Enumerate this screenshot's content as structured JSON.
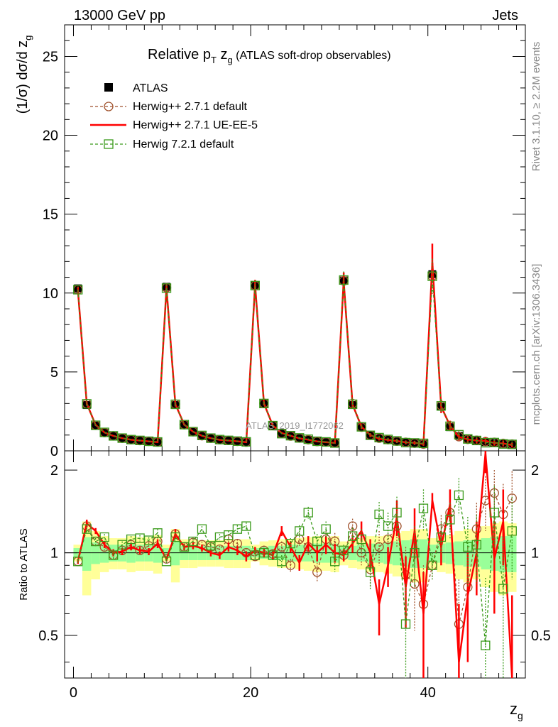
{
  "header": {
    "left": "13000 GeV pp",
    "right": "Jets"
  },
  "side_labels": {
    "rivet": "Rivet 3.1.10, ≥ 2.2M events",
    "mcplots": "mcplots.cern.ch [arXiv:1306.3436]"
  },
  "watermark": "ATLAS_2019_I1772062",
  "title": {
    "main": "Relative p",
    "sub_t": "T",
    "zg": " z",
    "sub_g": "g",
    "rest": " (ATLAS soft-drop observables)"
  },
  "ylabel_top": "(1/σ) dσ/d z",
  "ylabel_top_sub": "g",
  "ylabel_bottom": "Ratio to ATLAS",
  "xlabel": "z",
  "xlabel_sub": "g",
  "colors": {
    "atlas": "#000000",
    "herwig_def": "#a0522d",
    "herwig_ue": "#ff0000",
    "herwig7": "#3a9a1a",
    "band_yellow": "#ffff99",
    "band_green": "#99ff99"
  },
  "chart_data": {
    "type": "line",
    "x": [
      0.5,
      1.5,
      2.5,
      3.5,
      4.5,
      5.5,
      6.5,
      7.5,
      8.5,
      9.5,
      10.5,
      11.5,
      12.5,
      13.5,
      14.5,
      15.5,
      16.5,
      17.5,
      18.5,
      19.5,
      20.5,
      21.5,
      22.5,
      23.5,
      24.5,
      25.5,
      26.5,
      27.5,
      28.5,
      29.5,
      30.5,
      31.5,
      32.5,
      33.5,
      34.5,
      35.5,
      36.5,
      37.5,
      38.5,
      39.5,
      40.5,
      41.5,
      42.5,
      43.5,
      44.5,
      45.5,
      46.5,
      47.5,
      48.5,
      49.5
    ],
    "xlim": [
      -1,
      51
    ],
    "top_ylim": [
      0,
      27
    ],
    "top_yticks": [
      0,
      5,
      10,
      15,
      20,
      25
    ],
    "bottom_ylim": [
      0.35,
      2.35
    ],
    "bottom_yticks": [
      0.5,
      1,
      2
    ],
    "xticks": [
      0,
      20,
      40
    ],
    "legend": [
      "ATLAS",
      "Herwig++ 2.7.1 default",
      "Herwig++ 2.7.1 UE-EE-5",
      "Herwig 7.2.1 default"
    ],
    "legend_position": "top-left",
    "atlas": [
      10.3,
      2.9,
      1.6,
      1.15,
      0.95,
      0.8,
      0.7,
      0.65,
      0.6,
      0.55,
      10.4,
      2.9,
      1.65,
      1.2,
      0.95,
      0.8,
      0.7,
      0.65,
      0.6,
      0.55,
      10.5,
      3.0,
      1.6,
      1.1,
      0.95,
      0.8,
      0.7,
      0.6,
      0.55,
      0.5,
      10.8,
      2.9,
      1.5,
      1.0,
      0.8,
      0.7,
      0.6,
      0.55,
      0.5,
      0.45,
      11.2,
      2.8,
      1.5,
      0.95,
      0.75,
      0.65,
      0.55,
      0.5,
      0.45,
      0.4
    ],
    "series": [
      {
        "name": "Herwig++ 2.7.1 default",
        "ratio": [
          0.93,
          1.25,
          1.1,
          1.05,
          0.98,
          1.02,
          1.07,
          1.02,
          1.06,
          1.1,
          0.95,
          1.17,
          1.05,
          1.09,
          1.07,
          1.05,
          1.03,
          1.12,
          1.08,
          1.0,
          0.97,
          1.02,
          0.99,
          1.05,
          0.9,
          1.12,
          1.05,
          0.85,
          1.12,
          1.1,
          0.98,
          1.25,
          1.0,
          0.87,
          1.05,
          1.12,
          1.25,
          0.83,
          0.77,
          0.65,
          0.9,
          1.22,
          1.4,
          0.55,
          0.75,
          1.22,
          1.55,
          1.65,
          1.38,
          1.58
        ]
      },
      {
        "name": "Herwig++ 2.7.1 UE-EE-5",
        "ratio": [
          0.93,
          1.28,
          1.2,
          1.07,
          1.0,
          1.01,
          1.05,
          1.02,
          1.01,
          1.08,
          0.95,
          1.17,
          1.05,
          1.06,
          1.04,
          1.0,
          0.98,
          1.05,
          1.02,
          0.97,
          1.02,
          1.0,
          0.98,
          1.2,
          1.05,
          0.92,
          1.08,
          1.0,
          1.07,
          1.0,
          0.98,
          1.08,
          1.2,
          1.0,
          0.65,
          0.9,
          1.35,
          0.75,
          1.2,
          0.6,
          1.55,
          1.05,
          1.5,
          0.4,
          0.7,
          1.0,
          2.3,
          0.95,
          1.3,
          0.3
        ]
      },
      {
        "name": "Herwig 7.2.1 default",
        "ratio": [
          0.93,
          1.22,
          1.1,
          1.14,
          0.98,
          1.07,
          1.12,
          1.13,
          1.11,
          1.18,
          0.93,
          1.14,
          1.05,
          1.1,
          1.22,
          1.06,
          1.14,
          1.16,
          1.22,
          1.25,
          0.98,
          1.0,
          0.98,
          0.93,
          1.08,
          1.2,
          1.4,
          1.1,
          1.22,
          0.93,
          1.02,
          1.15,
          1.12,
          0.85,
          1.38,
          1.25,
          1.4,
          0.55,
          1.0,
          1.45,
          0.9,
          1.14,
          1.32,
          1.62,
          1.05,
          1.07,
          0.46,
          1.4,
          0.74,
          1.2
        ]
      }
    ],
    "band_yellow_halfwidth": [
      0.07,
      0.3,
      0.2,
      0.15,
      0.13,
      0.13,
      0.15,
      0.14,
      0.14,
      0.16,
      0.07,
      0.22,
      0.12,
      0.12,
      0.11,
      0.11,
      0.11,
      0.12,
      0.12,
      0.12,
      0.07,
      0.1,
      0.11,
      0.12,
      0.12,
      0.13,
      0.14,
      0.15,
      0.14,
      0.15,
      0.1,
      0.12,
      0.13,
      0.15,
      0.15,
      0.16,
      0.18,
      0.2,
      0.22,
      0.22,
      0.13,
      0.15,
      0.16,
      0.2,
      0.22,
      0.2,
      0.25,
      0.28,
      0.3,
      0.28
    ],
    "band_green_halfwidth": [
      0.04,
      0.14,
      0.09,
      0.08,
      0.07,
      0.07,
      0.08,
      0.07,
      0.07,
      0.08,
      0.04,
      0.1,
      0.06,
      0.06,
      0.06,
      0.06,
      0.06,
      0.06,
      0.06,
      0.06,
      0.04,
      0.05,
      0.06,
      0.06,
      0.07,
      0.07,
      0.07,
      0.08,
      0.08,
      0.08,
      0.05,
      0.06,
      0.07,
      0.08,
      0.08,
      0.09,
      0.1,
      0.11,
      0.12,
      0.12,
      0.07,
      0.08,
      0.09,
      0.1,
      0.11,
      0.11,
      0.13,
      0.14,
      0.15,
      0.15
    ],
    "err_halfwidth": [
      0.02,
      0.04,
      0.03,
      0.03,
      0.03,
      0.03,
      0.03,
      0.03,
      0.03,
      0.04,
      0.02,
      0.05,
      0.03,
      0.03,
      0.03,
      0.03,
      0.03,
      0.04,
      0.04,
      0.04,
      0.03,
      0.04,
      0.04,
      0.05,
      0.05,
      0.06,
      0.07,
      0.07,
      0.08,
      0.08,
      0.05,
      0.08,
      0.1,
      0.12,
      0.15,
      0.15,
      0.2,
      0.22,
      0.25,
      0.25,
      0.1,
      0.15,
      0.2,
      0.25,
      0.3,
      0.3,
      0.35,
      0.35,
      0.4,
      0.4
    ]
  }
}
